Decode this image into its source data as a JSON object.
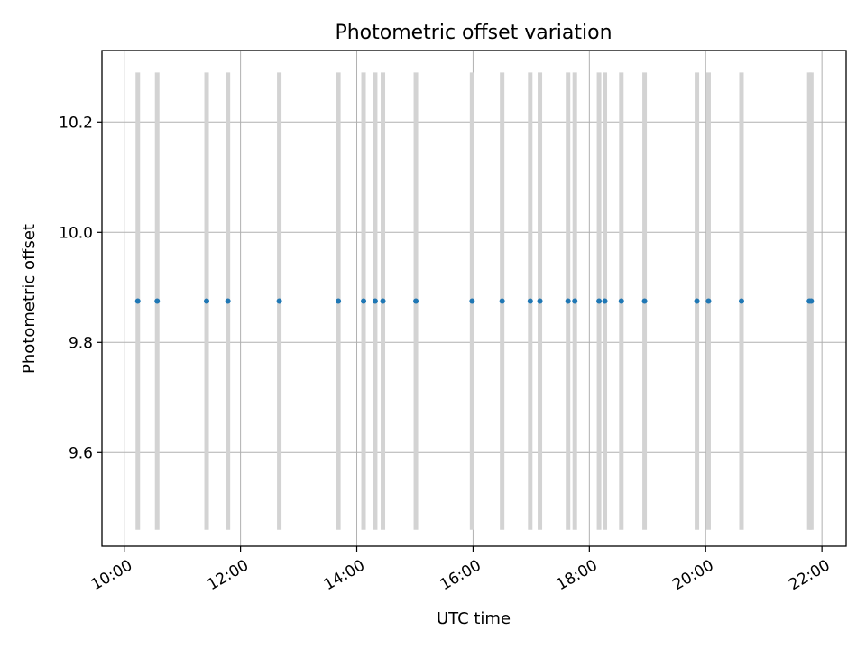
{
  "chart_data": {
    "type": "scatter",
    "title": "Photometric offset variation",
    "xlabel": "UTC time",
    "ylabel": "Photometric offset",
    "x_ticks": [
      "10:00",
      "12:00",
      "14:00",
      "16:00",
      "18:00",
      "20:00",
      "22:00"
    ],
    "y_ticks": [
      "9.6",
      "9.8",
      "10.0",
      "10.2"
    ],
    "xlim": [
      "09:37",
      "22:25"
    ],
    "ylim": [
      9.43,
      10.33
    ],
    "grid": true,
    "point_value": 9.875,
    "band_range": [
      9.46,
      10.29
    ],
    "points_x": [
      "10:14",
      "10:34",
      "11:25",
      "11:47",
      "12:40",
      "13:41",
      "14:07",
      "14:19",
      "14:27",
      "15:01",
      "15:59",
      "16:30",
      "16:59",
      "17:09",
      "17:38",
      "17:45",
      "18:10",
      "18:16",
      "18:33",
      "18:57",
      "19:51",
      "20:03",
      "20:37",
      "21:47",
      "21:49"
    ],
    "point_color": "#1f77b4",
    "band_color": "#d3d3d3",
    "grid_color": "#b0b0b0"
  }
}
